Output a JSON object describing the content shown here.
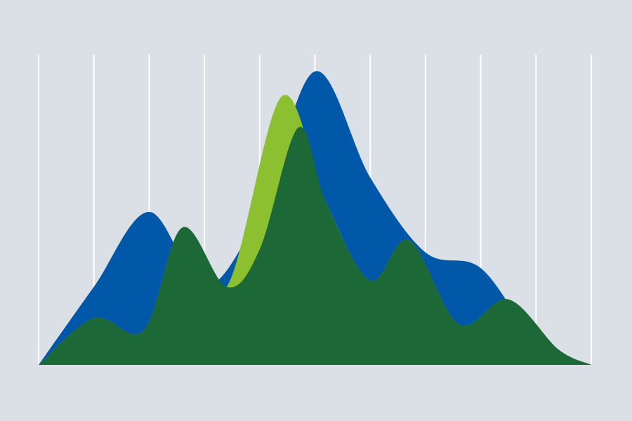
{
  "chart_data": {
    "type": "area",
    "grid": "vertical",
    "x": [
      0,
      1,
      2,
      3,
      4,
      5,
      6,
      7,
      8,
      9,
      10
    ],
    "xlim": [
      0,
      10
    ],
    "ylim": [
      0,
      100
    ],
    "series": [
      {
        "color": "#0157a8",
        "points": [
          [
            0,
            0
          ],
          [
            1,
            25
          ],
          [
            2,
            49
          ],
          [
            3,
            25
          ],
          [
            4,
            49
          ],
          [
            5,
            94
          ],
          [
            6,
            60
          ],
          [
            7,
            36
          ],
          [
            8,
            31
          ],
          [
            9,
            8
          ],
          [
            10,
            0
          ]
        ]
      },
      {
        "color": "#8dc031",
        "points": [
          [
            0,
            0
          ],
          [
            1,
            15
          ],
          [
            1.9,
            11
          ],
          [
            2.6,
            44
          ],
          [
            3.4,
            25
          ],
          [
            4.4,
            86
          ],
          [
            5.2,
            52
          ],
          [
            6.0,
            27
          ],
          [
            6.7,
            40
          ],
          [
            7.6,
            13
          ],
          [
            8.5,
            21
          ],
          [
            9.4,
            5
          ],
          [
            10,
            0
          ]
        ]
      },
      {
        "color": "#1c6836",
        "points": [
          [
            0,
            0
          ],
          [
            1,
            15
          ],
          [
            1.9,
            11
          ],
          [
            2.6,
            44
          ],
          [
            3.4,
            25
          ],
          [
            4.0,
            37
          ],
          [
            4.7,
            76
          ],
          [
            5.2,
            52
          ],
          [
            6.0,
            27
          ],
          [
            6.7,
            40
          ],
          [
            7.6,
            13
          ],
          [
            8.5,
            21
          ],
          [
            9.4,
            5
          ],
          [
            10,
            0
          ]
        ]
      }
    ]
  }
}
